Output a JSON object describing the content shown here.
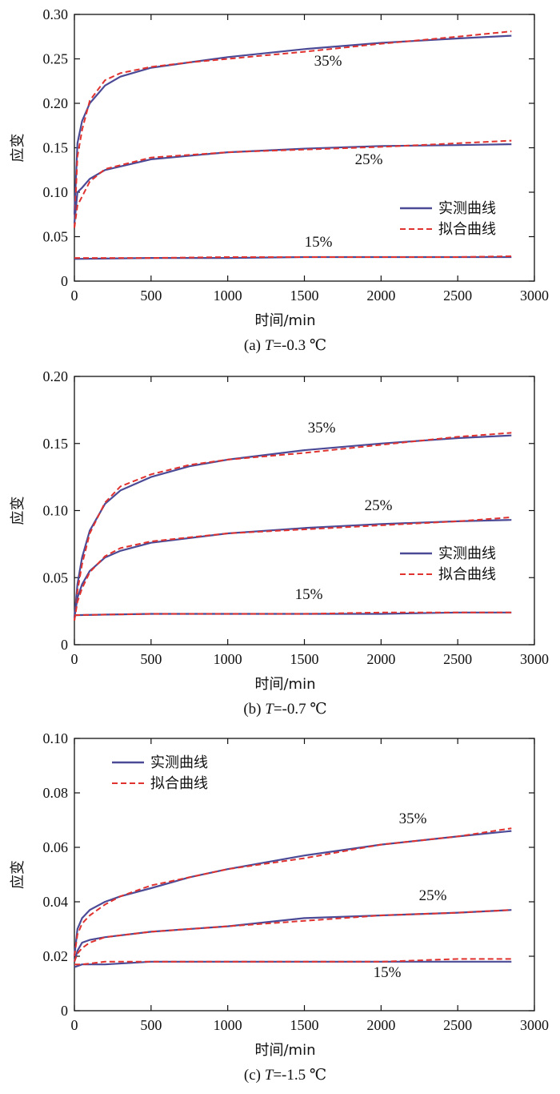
{
  "chart_data": [
    {
      "type": "line",
      "caption_prefix": "(a) ",
      "caption_var": "T",
      "caption_suffix": "=-0.3 ℃",
      "xlabel": "时间/min",
      "ylabel": "应变",
      "xlim": [
        0,
        3000
      ],
      "ylim": [
        0,
        0.3
      ],
      "xticks": [
        0,
        500,
        1000,
        1500,
        2000,
        2500,
        3000
      ],
      "yticks": [
        0,
        0.05,
        0.1,
        0.15,
        0.2,
        0.25,
        0.3
      ],
      "ytick_labels": [
        "0",
        "0.05",
        "0.10",
        "0.15",
        "0.20",
        "0.25",
        "0.30"
      ],
      "legend": {
        "position": "center-right",
        "entries": [
          "实测曲线",
          "拟合曲线"
        ]
      },
      "series": [
        {
          "label": "35%",
          "measured": [
            [
              0,
              0.075
            ],
            [
              20,
              0.155
            ],
            [
              50,
              0.18
            ],
            [
              100,
              0.2
            ],
            [
              200,
              0.22
            ],
            [
              300,
              0.23
            ],
            [
              500,
              0.24
            ],
            [
              750,
              0.246
            ],
            [
              1000,
              0.252
            ],
            [
              1500,
              0.261
            ],
            [
              2000,
              0.268
            ],
            [
              2500,
              0.273
            ],
            [
              2850,
              0.276
            ]
          ],
          "fitted": [
            [
              0,
              0.06
            ],
            [
              20,
              0.14
            ],
            [
              50,
              0.17
            ],
            [
              100,
              0.203
            ],
            [
              200,
              0.226
            ],
            [
              300,
              0.234
            ],
            [
              500,
              0.241
            ],
            [
              750,
              0.246
            ],
            [
              1000,
              0.25
            ],
            [
              1500,
              0.258
            ],
            [
              2000,
              0.267
            ],
            [
              2500,
              0.275
            ],
            [
              2850,
              0.281
            ]
          ]
        },
        {
          "label": "25%",
          "measured": [
            [
              0,
              0.065
            ],
            [
              20,
              0.1
            ],
            [
              50,
              0.105
            ],
            [
              100,
              0.115
            ],
            [
              200,
              0.125
            ],
            [
              500,
              0.137
            ],
            [
              1000,
              0.145
            ],
            [
              1500,
              0.149
            ],
            [
              2000,
              0.152
            ],
            [
              2500,
              0.153
            ],
            [
              2850,
              0.154
            ]
          ],
          "fitted": [
            [
              0,
              0.06
            ],
            [
              20,
              0.085
            ],
            [
              50,
              0.095
            ],
            [
              100,
              0.112
            ],
            [
              200,
              0.126
            ],
            [
              500,
              0.139
            ],
            [
              1000,
              0.145
            ],
            [
              1500,
              0.148
            ],
            [
              2000,
              0.151
            ],
            [
              2500,
              0.155
            ],
            [
              2850,
              0.158
            ]
          ]
        },
        {
          "label": "15%",
          "measured": [
            [
              0,
              0.025
            ],
            [
              500,
              0.026
            ],
            [
              1000,
              0.026
            ],
            [
              1500,
              0.027
            ],
            [
              2000,
              0.027
            ],
            [
              2500,
              0.027
            ],
            [
              2850,
              0.027
            ]
          ],
          "fitted": [
            [
              0,
              0.026
            ],
            [
              500,
              0.026
            ],
            [
              1000,
              0.027
            ],
            [
              1500,
              0.027
            ],
            [
              2000,
              0.027
            ],
            [
              2500,
              0.027
            ],
            [
              2850,
              0.028
            ]
          ]
        }
      ]
    },
    {
      "type": "line",
      "caption_prefix": "(b) ",
      "caption_var": "T",
      "caption_suffix": "=-0.7 ℃",
      "xlabel": "时间/min",
      "ylabel": "应变",
      "xlim": [
        0,
        3000
      ],
      "ylim": [
        0,
        0.2
      ],
      "xticks": [
        0,
        500,
        1000,
        1500,
        2000,
        2500,
        3000
      ],
      "yticks": [
        0,
        0.05,
        0.1,
        0.15,
        0.2
      ],
      "ytick_labels": [
        "0",
        "0.05",
        "0.10",
        "0.15",
        "0.20"
      ],
      "legend": {
        "position": "center-right",
        "entries": [
          "实测曲线",
          "拟合曲线"
        ]
      },
      "series": [
        {
          "label": "35%",
          "measured": [
            [
              0,
              0.02
            ],
            [
              20,
              0.045
            ],
            [
              50,
              0.065
            ],
            [
              100,
              0.085
            ],
            [
              200,
              0.105
            ],
            [
              300,
              0.115
            ],
            [
              500,
              0.125
            ],
            [
              750,
              0.133
            ],
            [
              1000,
              0.138
            ],
            [
              1500,
              0.145
            ],
            [
              2000,
              0.15
            ],
            [
              2500,
              0.154
            ],
            [
              2850,
              0.156
            ]
          ],
          "fitted": [
            [
              0,
              0.018
            ],
            [
              20,
              0.04
            ],
            [
              50,
              0.06
            ],
            [
              100,
              0.083
            ],
            [
              200,
              0.106
            ],
            [
              300,
              0.118
            ],
            [
              500,
              0.127
            ],
            [
              750,
              0.134
            ],
            [
              1000,
              0.138
            ],
            [
              1500,
              0.143
            ],
            [
              2000,
              0.149
            ],
            [
              2500,
              0.155
            ],
            [
              2850,
              0.158
            ]
          ]
        },
        {
          "label": "25%",
          "measured": [
            [
              0,
              0.02
            ],
            [
              20,
              0.035
            ],
            [
              50,
              0.045
            ],
            [
              100,
              0.055
            ],
            [
              200,
              0.065
            ],
            [
              300,
              0.07
            ],
            [
              500,
              0.076
            ],
            [
              1000,
              0.083
            ],
            [
              1500,
              0.087
            ],
            [
              2000,
              0.09
            ],
            [
              2500,
              0.092
            ],
            [
              2850,
              0.093
            ]
          ],
          "fitted": [
            [
              0,
              0.018
            ],
            [
              20,
              0.032
            ],
            [
              50,
              0.042
            ],
            [
              100,
              0.054
            ],
            [
              200,
              0.066
            ],
            [
              300,
              0.072
            ],
            [
              500,
              0.077
            ],
            [
              1000,
              0.083
            ],
            [
              1500,
              0.086
            ],
            [
              2000,
              0.089
            ],
            [
              2500,
              0.092
            ],
            [
              2850,
              0.095
            ]
          ]
        },
        {
          "label": "15%",
          "measured": [
            [
              0,
              0.022
            ],
            [
              500,
              0.023
            ],
            [
              1000,
              0.023
            ],
            [
              1500,
              0.023
            ],
            [
              2000,
              0.023
            ],
            [
              2500,
              0.024
            ],
            [
              2850,
              0.024
            ]
          ],
          "fitted": [
            [
              0,
              0.022
            ],
            [
              500,
              0.023
            ],
            [
              1000,
              0.023
            ],
            [
              1500,
              0.023
            ],
            [
              2000,
              0.024
            ],
            [
              2500,
              0.024
            ],
            [
              2850,
              0.024
            ]
          ]
        }
      ]
    },
    {
      "type": "line",
      "caption_prefix": "(c) ",
      "caption_var": "T",
      "caption_suffix": "=-1.5 ℃",
      "xlabel": "时间/min",
      "ylabel": "应变",
      "xlim": [
        0,
        3000
      ],
      "ylim": [
        0,
        0.1
      ],
      "xticks": [
        0,
        500,
        1000,
        1500,
        2000,
        2500,
        3000
      ],
      "yticks": [
        0,
        0.02,
        0.04,
        0.06,
        0.08,
        0.1
      ],
      "ytick_labels": [
        "0",
        "0.02",
        "0.04",
        "0.06",
        "0.08",
        "0.10"
      ],
      "legend": {
        "position": "top-left",
        "entries": [
          "实测曲线",
          "拟合曲线"
        ]
      },
      "series": [
        {
          "label": "35%",
          "measured": [
            [
              0,
              0.02
            ],
            [
              20,
              0.03
            ],
            [
              50,
              0.034
            ],
            [
              100,
              0.037
            ],
            [
              200,
              0.04
            ],
            [
              300,
              0.042
            ],
            [
              500,
              0.045
            ],
            [
              750,
              0.049
            ],
            [
              1000,
              0.052
            ],
            [
              1500,
              0.057
            ],
            [
              2000,
              0.061
            ],
            [
              2500,
              0.064
            ],
            [
              2850,
              0.066
            ]
          ],
          "fitted": [
            [
              0,
              0.02
            ],
            [
              20,
              0.028
            ],
            [
              50,
              0.032
            ],
            [
              100,
              0.035
            ],
            [
              200,
              0.039
            ],
            [
              300,
              0.042
            ],
            [
              500,
              0.046
            ],
            [
              750,
              0.049
            ],
            [
              1000,
              0.052
            ],
            [
              1500,
              0.056
            ],
            [
              2000,
              0.061
            ],
            [
              2500,
              0.064
            ],
            [
              2850,
              0.067
            ]
          ]
        },
        {
          "label": "25%",
          "measured": [
            [
              0,
              0.018
            ],
            [
              20,
              0.022
            ],
            [
              50,
              0.025
            ],
            [
              100,
              0.026
            ],
            [
              200,
              0.027
            ],
            [
              500,
              0.029
            ],
            [
              1000,
              0.031
            ],
            [
              1500,
              0.034
            ],
            [
              2000,
              0.035
            ],
            [
              2500,
              0.036
            ],
            [
              2850,
              0.037
            ]
          ],
          "fitted": [
            [
              0,
              0.018
            ],
            [
              20,
              0.021
            ],
            [
              50,
              0.023
            ],
            [
              100,
              0.025
            ],
            [
              200,
              0.027
            ],
            [
              500,
              0.029
            ],
            [
              1000,
              0.031
            ],
            [
              1500,
              0.033
            ],
            [
              2000,
              0.035
            ],
            [
              2500,
              0.036
            ],
            [
              2850,
              0.037
            ]
          ]
        },
        {
          "label": "15%",
          "measured": [
            [
              0,
              0.016
            ],
            [
              50,
              0.017
            ],
            [
              200,
              0.017
            ],
            [
              500,
              0.018
            ],
            [
              1000,
              0.018
            ],
            [
              1500,
              0.018
            ],
            [
              2000,
              0.018
            ],
            [
              2500,
              0.018
            ],
            [
              2850,
              0.018
            ]
          ],
          "fitted": [
            [
              0,
              0.017
            ],
            [
              50,
              0.017
            ],
            [
              200,
              0.018
            ],
            [
              500,
              0.018
            ],
            [
              1000,
              0.018
            ],
            [
              1500,
              0.018
            ],
            [
              2000,
              0.018
            ],
            [
              2500,
              0.019
            ],
            [
              2850,
              0.019
            ]
          ]
        }
      ]
    }
  ],
  "colors": {
    "measured": "#4b4a96",
    "fitted": "#e0322e"
  }
}
